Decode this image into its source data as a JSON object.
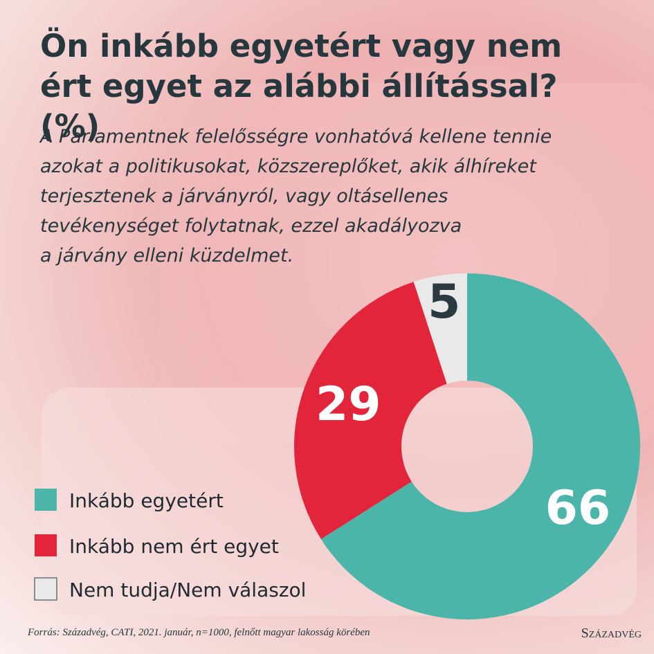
{
  "chart_data": {
    "type": "donut",
    "title": "Ön inkább egyetért vagy nem ért egyet az alábbi állítással? (%)",
    "subtitle": [
      "A Parlamentnek felelősségre vonhatóvá kellene tennie",
      "azokat a politikusokat, közszereplőket, akik álhíreket",
      "terjesztenek a járványról, vagy oltásellenes",
      "tevékenységet folytatnak, ezzel akadályozva",
      "a járvány elleni küzdelmet."
    ],
    "categories": [
      "Inkább egyetért",
      "Inkább nem ért egyet",
      "Nem tudja/Nem válaszol"
    ],
    "values": [
      66,
      29,
      5
    ],
    "colors": [
      "#4ab5a8",
      "#e2253a",
      "#e9e9e9"
    ],
    "label_colors": [
      "#ffffff",
      "#ffffff",
      "#2a3a40"
    ],
    "source": "Forrás: Századvég, CATI, 2021. január, n=1000, felnőtt magyar lakosság körében",
    "logo": "Századvég"
  }
}
